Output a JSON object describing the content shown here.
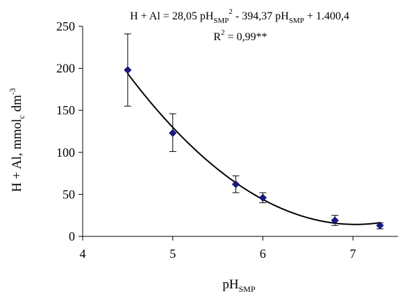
{
  "chart_data": {
    "type": "scatter",
    "x": [
      4.5,
      5.0,
      5.7,
      6.0,
      6.8,
      7.3
    ],
    "y": [
      198,
      123,
      62,
      46,
      19,
      13
    ],
    "error_upper": [
      241,
      146,
      72,
      52,
      25,
      16
    ],
    "error_lower": [
      155,
      101,
      52,
      40,
      13,
      9
    ],
    "fit": {
      "type": "polynomial",
      "degree": 2,
      "coefficients": [
        28.05,
        -394.37,
        1400.4
      ],
      "x_range": [
        4.5,
        7.3
      ]
    },
    "xlim": [
      4,
      7.5
    ],
    "ylim": [
      0,
      250
    ],
    "x_ticks": [
      4,
      5,
      6,
      7
    ],
    "y_ticks": [
      0,
      50,
      100,
      150,
      200,
      250
    ],
    "x_tick_labels": [
      "4",
      "5",
      "6",
      "7"
    ],
    "y_tick_labels": [
      "0",
      "50",
      "100",
      "150",
      "200",
      "250"
    ],
    "xlabel": {
      "base": "pH",
      "sub": "SMP"
    },
    "ylabel": {
      "text": "H + Al, mmol",
      "sub": "c",
      "mid": " dm",
      "sup": "-3"
    },
    "equation": {
      "p1": "H + Al = 28,05 pH",
      "s1": "SMP",
      "e1": "2",
      "p2": " - 394,37 pH",
      "s2": "SMP",
      "p3": " + 1.400,4"
    },
    "r2": {
      "p1": "R",
      "sup": "2",
      "p2": " = 0,99**"
    },
    "grid": false,
    "legend": "none",
    "colors": {
      "marker": "#1a1a8c",
      "line": "#000000"
    }
  }
}
